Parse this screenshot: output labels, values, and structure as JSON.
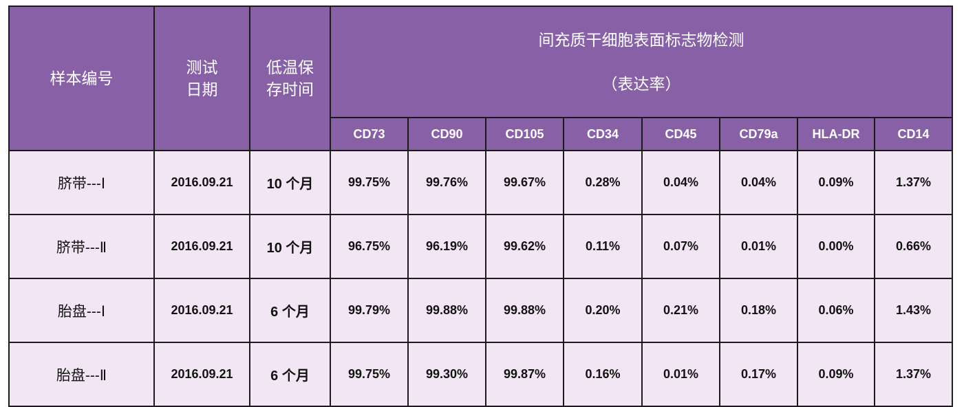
{
  "table": {
    "header": {
      "sample": "样本编号",
      "date": "测试\n日期",
      "storage": "低温保\n存时间",
      "group_title": "间充质干细胞表面标志物检测",
      "group_subtitle": "（表达率）",
      "markers": [
        "CD73",
        "CD90",
        "CD105",
        "CD34",
        "CD45",
        "CD79a",
        "HLA-DR",
        "CD14"
      ]
    },
    "rows": [
      [
        "脐带---Ⅰ",
        "2016.09.21",
        "10 个月",
        "99.75%",
        "99.76%",
        "99.67%",
        "0.28%",
        "0.04%",
        "0.04%",
        "0.09%",
        "1.37%"
      ],
      [
        "脐带---Ⅱ",
        "2016.09.21",
        "10 个月",
        "96.75%",
        "96.19%",
        "99.62%",
        "0.11%",
        "0.07%",
        "0.01%",
        "0.00%",
        "0.66%"
      ],
      [
        "胎盘---Ⅰ",
        "2016.09.21",
        "6 个月",
        "99.79%",
        "99.88%",
        "99.88%",
        "0.20%",
        "0.21%",
        "0.18%",
        "0.06%",
        "1.43%"
      ],
      [
        "胎盘---Ⅱ",
        "2016.09.21",
        "6 个月",
        "99.75%",
        "99.30%",
        "99.87%",
        "0.16%",
        "0.01%",
        "0.17%",
        "0.09%",
        "1.37%"
      ]
    ]
  }
}
